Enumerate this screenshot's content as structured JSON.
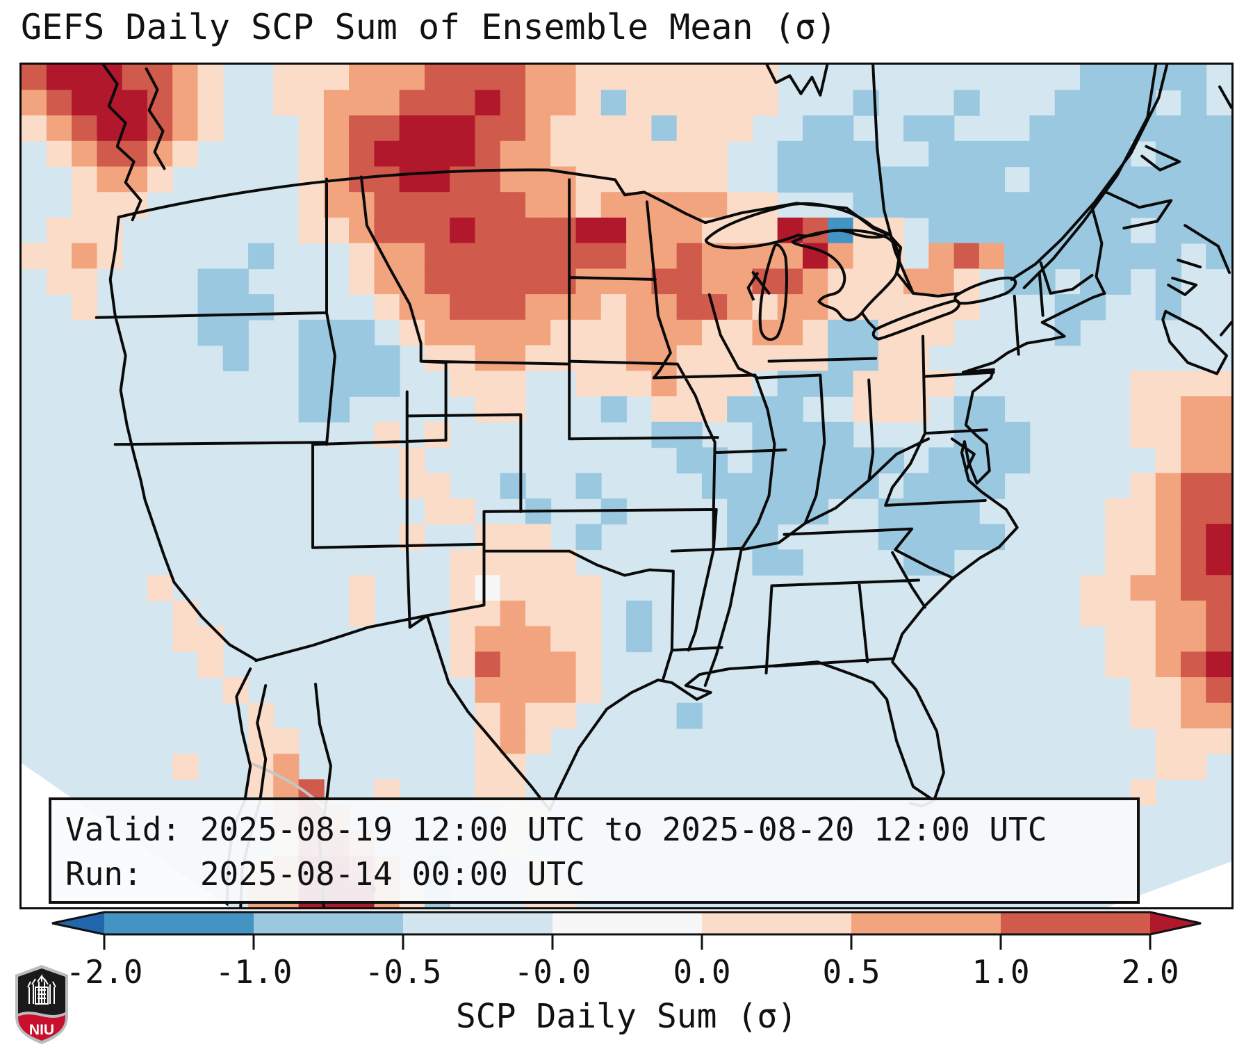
{
  "title": "GEFS Daily SCP Sum of Ensemble Mean (σ)",
  "info_box": {
    "line1": "Valid: 2025-08-19 12:00 UTC to 2025-08-20 12:00 UTC",
    "line2": "Run:   2025-08-14 00:00 UTC"
  },
  "colorbar": {
    "label": "SCP Daily Sum (σ)",
    "tick_labels": [
      "-2.0",
      "-1.0",
      "-0.5",
      "-0.0",
      "0.0",
      "0.5",
      "1.0",
      "2.0"
    ],
    "boundaries": [
      -2.0,
      -1.0,
      -0.5,
      -0.0,
      0.0,
      0.5,
      1.0,
      2.0
    ],
    "segment_colors": [
      "#4393c3",
      "#9ac8e0",
      "#d3e5ef",
      "#f7f7f7",
      "#fadcc8",
      "#f2a47f",
      "#d05a4b"
    ],
    "under_color": "#2166ac",
    "over_color": "#b2182b",
    "outline_color": "#111111"
  },
  "logo": {
    "name": "NIU shield logo",
    "text": "NIU",
    "red": "#c8102e",
    "black": "#1a1a1a",
    "silver": "#b9bdbe"
  },
  "chart_data": {
    "type": "heatmap",
    "title": "GEFS Daily SCP Sum of Ensemble Mean (σ)",
    "units": "sigma (standardized anomaly)",
    "valid_period": "2025-08-19 12:00 UTC to 2025-08-20 12:00 UTC",
    "run": "2025-08-14 00:00 UTC",
    "colormap": "RdBu_r with boundaries [-2,-1,-0.5,-0,0,0.5,1,2]",
    "features": [
      {
        "region": "British Columbia / Pacific Northwest coast",
        "anomaly": "> +2 sigma (dark red blob, upper-left)"
      },
      {
        "region": "Montana / western Dakotas",
        "anomaly": "+1 to > +2 sigma (large red area along northern border)"
      },
      {
        "region": "Wisconsin / Michigan / Great Lakes",
        "anomaly": "+0.5 to > +2 sigma (red patch, dark cell near northern Lake Michigan-Huron)"
      },
      {
        "region": "Central Texas",
        "anomaly": "+0.5 to +2 sigma (salmon blob with one red cell)"
      },
      {
        "region": "Northwest Mexico (Sierra Madre)",
        "anomaly": "> +2 sigma streak at bottom center-left"
      },
      {
        "region": "Western Atlantic along right edge",
        "anomaly": "+0.5 to > +2 sigma diagonal streak"
      },
      {
        "region": "Quebec / Maritimes / Northeast",
        "anomaly": "-0.5 to -1 sigma (medium blue)"
      },
      {
        "region": "Coastal Carolinas and offshore",
        "anomaly": "-0.5 to -1 sigma band"
      },
      {
        "region": "Utah / SW Wyoming",
        "anomaly": "-0.5 to -1 sigma patch"
      },
      {
        "region": "Most of central/southern CONUS",
        "anomaly": "-0.5 to 0 sigma (pale blue background)"
      }
    ],
    "grid": {
      "note": "48x33 coarse raster of the plotted field; one char per cell",
      "palette": {
        ".": {
          "color": "#d4e6ef",
          "range": "-0.5 to -0.0"
        },
        "2": {
          "color": "#9ac8e0",
          "range": "-1.0 to -0.5"
        },
        "1": {
          "color": "#4393c3",
          "range": "-2.0 to -1.0"
        },
        "0": {
          "color": "#2166ac",
          "range": "< -2.0"
        },
        "4": {
          "color": "#f7f7f7",
          "range": "-0.0 to 0.0"
        },
        "5": {
          "color": "#fadcc8",
          "range": "0.0 to 0.5"
        },
        "6": {
          "color": "#f2a47f",
          "range": "0.5 to 1.0"
        },
        "7": {
          "color": "#d05a4b",
          "range": "1.0 to 2.0"
        },
        "8": {
          "color": "#b2182b",
          "range": "> 2.0"
        }
      },
      "rows": [
        "78887765..55566677776655555555............22222..",
        "67888765..55666777876652555555...2...2...2222.2.",
        "56788765...567788877655552555..22..22...22222222",
        ".567765....56788887665555555..2222..22222222.222",
        "..5665.....56778877666555555..222222222.22222222",
        "..555......5667777776656666655...2222222222222222",
        ".555.......556777877778866655587155.22222222.22222",
        "5565.....2...56677777777667666686 55.676 2222222.22",
        ".55....22....56677777766677667765556 6 5.22.22.2..",
        "..5....222....56677766656 677656 6555555...22..2...",
        ".......22..222.566666555666556 6522555....2......",
        "........2..2222.5566555566555555 2255............",
        "...........2222..555..5556555.222 5555.......5555",
        "...........22.....55...2.555222..555.22.....5566",
        "..............5.5........22..2222....222....5566",
        "...............5..........22.222222.2222.....566",
        "...............55..2..2....2222222.2222.....5677",
        "................55..2..2....2222..2222.....5 5677",
        "...............5..555.2.....22....22222....55678",
        ".................55555.......22....22......55678",
        ".....5.......5...545555...................556677",
        "......5......5...55 6555.2.................555667",
        "......55.........5666 55.2..................55667",
        ".......5.........57666 5....................55678",
        "........5.........6666 5.....................5567",
        ".........5........56 55....2.................5566",
        ".........55.......565........................555",
        "......5..56.......55.........................55.",
        ".........567..5...55........................5...",
        "..........676......55...........................",
        "..........577 6.....5............................",
        ".........56887 6.2...5...........................",
        ".........66888 652...55.........................."
      ]
    }
  }
}
